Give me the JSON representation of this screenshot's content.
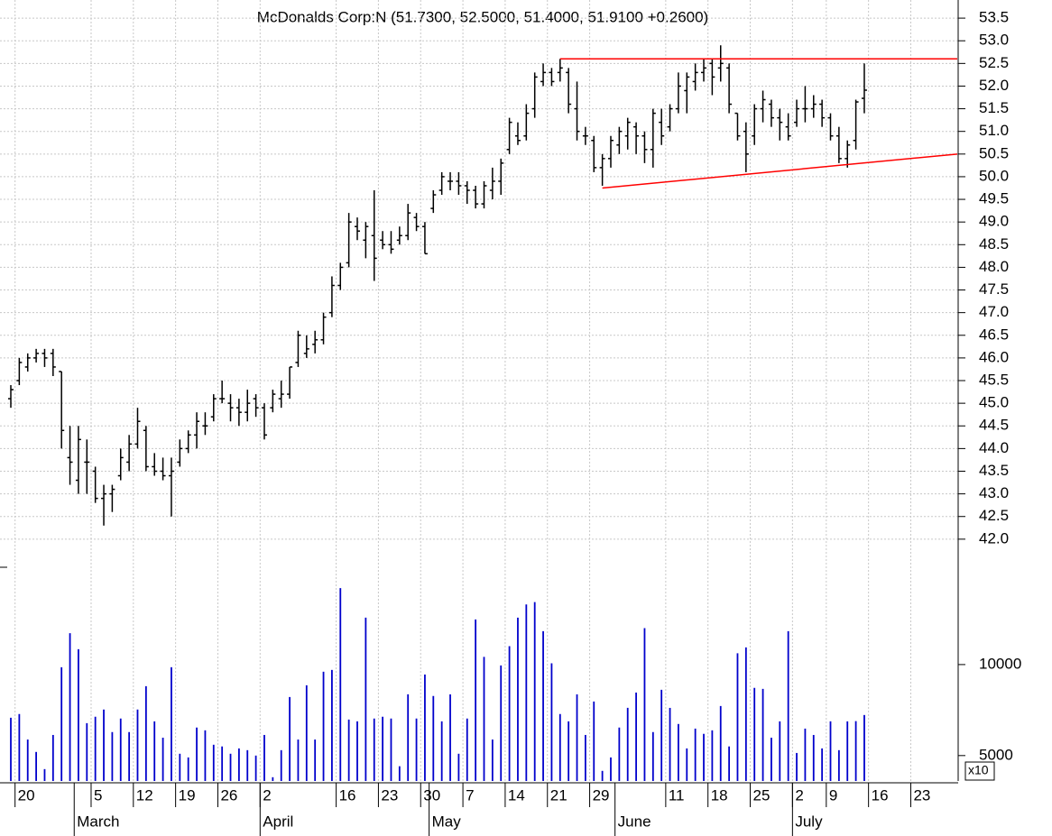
{
  "chart_data": {
    "type": "ohlc",
    "title": "McDonalds Corp:N (51.7300, 52.5000, 51.4000, 51.9100 +0.2600)",
    "categories": [
      null,
      "20",
      null,
      null,
      null,
      null,
      null,
      null,
      null,
      null,
      "5",
      null,
      null,
      null,
      null,
      "12",
      null,
      null,
      null,
      null,
      "19",
      null,
      null,
      null,
      null,
      "26",
      null,
      null,
      null,
      null,
      "2",
      null,
      null,
      null,
      null,
      null,
      null,
      null,
      null,
      "16",
      null,
      null,
      null,
      null,
      "23",
      null,
      null,
      null,
      null,
      "30",
      null,
      null,
      null,
      null,
      "7",
      null,
      null,
      null,
      null,
      "14",
      null,
      null,
      null,
      null,
      "21",
      null,
      null,
      null,
      null,
      "29",
      null,
      null,
      null,
      null,
      null,
      null,
      null,
      null,
      "11",
      null,
      null,
      null,
      null,
      "18",
      null,
      null,
      null,
      null,
      "25",
      null,
      null,
      null,
      null,
      "2",
      null,
      null,
      null,
      "9",
      null,
      null,
      null,
      null,
      "16",
      null,
      null,
      null,
      null,
      "23",
      null,
      null,
      null,
      null
    ],
    "months": [
      {
        "name": "March",
        "start": 8
      },
      {
        "name": "April",
        "start": 30
      },
      {
        "name": "May",
        "start": 50
      },
      {
        "name": "June",
        "start": 72
      },
      {
        "name": "July",
        "start": 93
      }
    ],
    "open": [
      45.1,
      45.5,
      45.8,
      46.0,
      46.1,
      46.1,
      45.7,
      43.8,
      43.3,
      43.7,
      43.5,
      42.9,
      43.0,
      43.4,
      43.7,
      44.1,
      44.4,
      43.6,
      43.5,
      43.4,
      43.7,
      44.0,
      44.3,
      44.5,
      44.7,
      45.1,
      45.0,
      44.9,
      44.8,
      45.1,
      44.9,
      44.9,
      45.1,
      45.2,
      45.9,
      46.1,
      46.3,
      46.4,
      47.0,
      47.6,
      48.1,
      48.9,
      48.6,
      48.7,
      48.6,
      48.5,
      48.6,
      48.7,
      49.1,
      48.9,
      49.3,
      49.7,
      49.9,
      49.9,
      49.8,
      49.7,
      49.4,
      49.7,
      49.9,
      50.6,
      50.9,
      50.9,
      51.5,
      52.1,
      52.3,
      52.3,
      52.3,
      51.5,
      50.9,
      50.8,
      50.2,
      50.4,
      50.7,
      50.9,
      51.1,
      50.9,
      50.6,
      51.2,
      51.1,
      51.5,
      51.9,
      52.1,
      52.3,
      52.5,
      52.4,
      52.4,
      51.4,
      51.0,
      50.9,
      51.5,
      51.6,
      51.3,
      51.1,
      51.2,
      51.5,
      51.5,
      51.6,
      51.3,
      50.9,
      50.4,
      50.8,
      51.73,
      null,
      null,
      null,
      null,
      null,
      null,
      null,
      null,
      null,
      null
    ],
    "high": [
      45.4,
      46.0,
      46.1,
      46.2,
      46.2,
      46.2,
      45.7,
      44.5,
      44.5,
      44.2,
      43.6,
      43.2,
      43.2,
      44.0,
      44.3,
      44.9,
      44.5,
      43.9,
      43.8,
      43.8,
      44.2,
      44.4,
      44.8,
      44.8,
      45.2,
      45.5,
      45.2,
      45.1,
      45.3,
      45.2,
      45.0,
      45.3,
      45.5,
      45.8,
      46.6,
      46.5,
      46.6,
      47.0,
      47.8,
      48.1,
      49.2,
      49.1,
      49.0,
      49.7,
      48.8,
      48.8,
      48.9,
      49.4,
      49.2,
      49.0,
      49.7,
      50.1,
      50.1,
      50.1,
      49.9,
      49.8,
      49.9,
      50.2,
      50.4,
      51.3,
      51.2,
      51.6,
      52.3,
      52.5,
      52.4,
      52.6,
      52.4,
      52.1,
      51.1,
      50.9,
      50.5,
      50.9,
      51.1,
      51.3,
      51.2,
      51.0,
      51.5,
      51.5,
      51.6,
      52.3,
      52.3,
      52.5,
      52.6,
      52.6,
      52.9,
      52.5,
      51.4,
      51.2,
      51.6,
      51.9,
      51.7,
      51.5,
      51.4,
      51.7,
      52.0,
      51.8,
      51.7,
      51.4,
      51.1,
      50.8,
      51.7,
      52.5,
      null,
      null,
      null,
      null,
      null,
      null,
      null,
      null,
      null,
      null
    ],
    "low": [
      44.9,
      45.4,
      45.7,
      45.9,
      45.8,
      45.6,
      44.0,
      43.2,
      43.0,
      43.0,
      42.8,
      42.3,
      42.6,
      43.3,
      43.5,
      44.0,
      43.5,
      43.4,
      43.3,
      42.5,
      43.6,
      43.9,
      44.0,
      44.3,
      44.6,
      45.0,
      44.6,
      44.5,
      44.6,
      44.7,
      44.2,
      44.8,
      44.9,
      45.1,
      45.8,
      46.0,
      46.1,
      46.3,
      46.9,
      47.5,
      48.0,
      48.6,
      48.2,
      47.7,
      48.4,
      48.3,
      48.5,
      48.6,
      48.8,
      48.3,
      49.2,
      49.6,
      49.7,
      49.6,
      49.4,
      49.3,
      49.3,
      49.5,
      49.6,
      50.5,
      50.7,
      50.8,
      51.3,
      52.0,
      52.0,
      52.1,
      51.4,
      50.8,
      50.7,
      50.1,
      49.8,
      50.2,
      50.5,
      50.6,
      50.5,
      50.3,
      50.2,
      50.7,
      51.0,
      51.4,
      51.4,
      51.9,
      52.1,
      51.8,
      52.1,
      51.4,
      50.8,
      50.1,
      50.7,
      51.2,
      51.1,
      50.8,
      50.8,
      51.1,
      51.2,
      51.3,
      51.1,
      50.8,
      50.3,
      50.2,
      50.6,
      51.4,
      null,
      null,
      null,
      null,
      null,
      null,
      null,
      null,
      null,
      null
    ],
    "close": [
      45.3,
      45.9,
      46.0,
      46.1,
      46.0,
      45.8,
      44.4,
      43.7,
      44.2,
      43.7,
      42.9,
      43.0,
      43.1,
      43.8,
      44.1,
      44.6,
      43.6,
      43.5,
      43.4,
      43.5,
      44.0,
      44.3,
      44.6,
      44.5,
      45.1,
      45.1,
      44.9,
      44.8,
      45.0,
      44.9,
      44.3,
      45.2,
      45.2,
      45.8,
      46.5,
      46.2,
      46.4,
      46.9,
      47.6,
      48.0,
      49.0,
      48.8,
      48.9,
      48.2,
      48.5,
      48.4,
      48.7,
      49.2,
      48.9,
      48.3,
      49.6,
      50.0,
      49.9,
      49.8,
      49.7,
      49.4,
      49.8,
      49.9,
      50.3,
      51.2,
      50.8,
      51.4,
      52.2,
      52.3,
      52.1,
      52.4,
      51.6,
      51.0,
      50.9,
      50.2,
      50.4,
      50.8,
      51.0,
      51.2,
      50.9,
      50.6,
      51.4,
      50.9,
      51.5,
      52.0,
      52.2,
      52.3,
      52.4,
      52.2,
      52.5,
      51.6,
      50.9,
      50.5,
      51.5,
      51.7,
      51.3,
      51.2,
      50.9,
      51.5,
      51.5,
      51.6,
      51.3,
      50.9,
      50.4,
      50.7,
      51.65,
      51.91,
      null,
      null,
      null,
      null,
      null,
      null,
      null,
      null,
      null,
      null
    ],
    "color": "#000000",
    "volume": [
      6670,
      6860,
      5650,
      5140,
      4510,
      5850,
      9800,
      12700,
      11240,
      6400,
      6720,
      7100,
      5980,
      6630,
      5980,
      7100,
      8480,
      6490,
      5730,
      9800,
      5070,
      4930,
      6190,
      6060,
      5430,
      5360,
      5070,
      5280,
      5210,
      5000,
      5850,
      4240,
      5210,
      7810,
      5650,
      8540,
      5650,
      9470,
      9600,
      17900,
      6580,
      6490,
      14300,
      6630,
      6720,
      6630,
      4610,
      7970,
      6630,
      9270,
      7870,
      6490,
      7970,
      5070,
      6630,
      14100,
      10600,
      5650,
      9930,
      11500,
      14300,
      15800,
      16100,
      12900,
      10100,
      6860,
      6490,
      7970,
      5850,
      7550,
      4450,
      4930,
      6190,
      7190,
      8080,
      13200,
      5980,
      8250,
      7190,
      6360,
      5280,
      6140,
      5900,
      6060,
      7290,
      5360,
      10900,
      11400,
      8370,
      8310,
      5730,
      6490,
      12900,
      5100,
      6140,
      5850,
      5280,
      6490,
      5210,
      6490,
      6500,
      6810,
      null,
      null,
      null,
      null,
      null,
      null,
      null,
      null,
      null,
      null
    ],
    "volume_color": "#0000cc",
    "ylim": [
      41.4,
      53.9
    ],
    "yticks": [
      {
        "value": 42,
        "label": "42.0"
      },
      42.5,
      {
        "value": 43,
        "label": "43.0"
      },
      43.5,
      {
        "value": 44,
        "label": "44.0"
      },
      44.5,
      {
        "value": 45,
        "label": "45.0"
      },
      45.5,
      {
        "value": 46,
        "label": "46.0"
      },
      46.5,
      {
        "value": 47,
        "label": "47.0"
      },
      47.5,
      {
        "value": 48,
        "label": "48.0"
      },
      48.5,
      {
        "value": 49,
        "label": "49.0"
      },
      49.5,
      {
        "value": 50,
        "label": "50.0"
      },
      50.5,
      {
        "value": 51,
        "label": "51.0"
      },
      51.5,
      {
        "value": 52,
        "label": "52.0"
      },
      52.5,
      {
        "value": 53,
        "label": "53.0"
      },
      53.5
    ],
    "y2lim": [
      4120,
      20840
    ],
    "y2ticks": [
      5000,
      10000
    ],
    "y2log": true,
    "y2_label": "x10",
    "grid": true,
    "lines": [
      {
        "x0": 65,
        "y0": 52.6,
        "x1": 112,
        "y1": 52.6
      },
      {
        "x0": 70,
        "y0": 49.75,
        "x1": 112,
        "y1": 50.5
      }
    ],
    "lines_color": "#ff0000"
  }
}
